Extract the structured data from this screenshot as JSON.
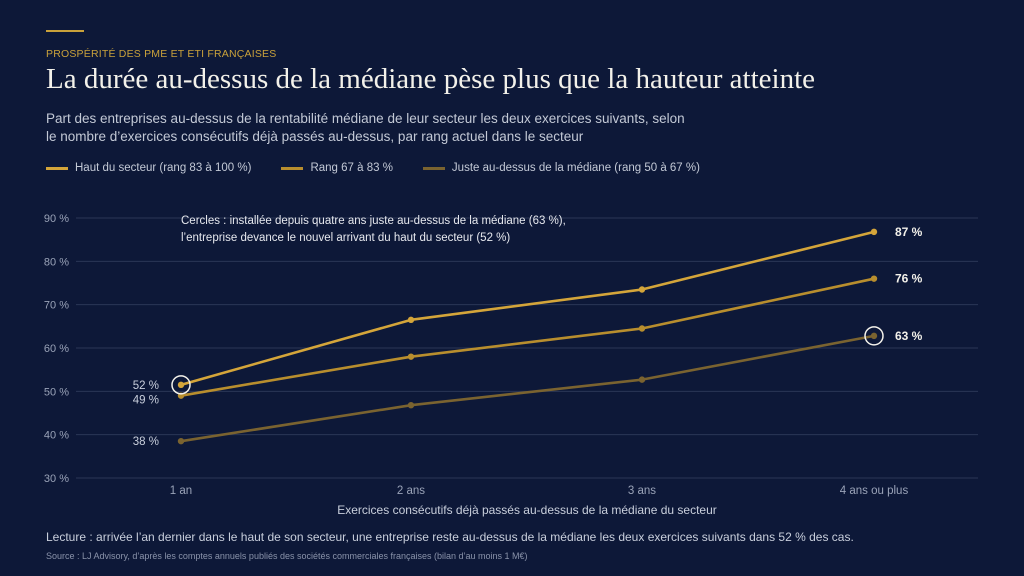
{
  "header": {
    "kicker": "PROSPÉRITÉ DES PME ET ETI FRANÇAISES",
    "title": "La durée au-dessus de la médiane pèse plus que la hauteur atteinte",
    "subtitle": "Part des entreprises au-dessus de la rentabilité médiane de leur secteur les deux exercices suivants, selon le nombre d’exercices consécutifs déjà passés au-dessus, par rang actuel dans le secteur"
  },
  "chart_data": {
    "type": "line",
    "categories": [
      "1 an",
      "2 ans",
      "3 ans",
      "4 ans ou plus"
    ],
    "xlabel": "Exercices consécutifs déjà passés au-dessus de la médiane du secteur",
    "ylabel": "",
    "ylim": [
      30,
      90
    ],
    "yticks": [
      30,
      40,
      50,
      60,
      70,
      80,
      90
    ],
    "ytick_labels": [
      "30 %",
      "40 %",
      "50 %",
      "60 %",
      "70 %",
      "80 %",
      "90 %"
    ],
    "grid": true,
    "legend_position": "top-left",
    "series": [
      {
        "name": "Haut du secteur (rang 83 à 100 %)",
        "values": [
          51.5,
          66.5,
          73.5,
          86.8
        ],
        "color": "#d4a53a",
        "start_label": "52 %",
        "end_label": "87 %"
      },
      {
        "name": "Rang 67 à 83 %",
        "values": [
          49,
          58,
          64.5,
          76
        ],
        "color": "#b88e2e",
        "start_label": "49 %",
        "end_label": "76 %"
      },
      {
        "name": "Juste au-dessus de la médiane (rang 50 à 67 %)",
        "values": [
          38.5,
          46.8,
          52.7,
          62.8
        ],
        "color": "#7a6330",
        "start_label": "38 %",
        "end_label": "63 %"
      }
    ],
    "annotation": {
      "lines": [
        "Cercles : installée depuis quatre ans juste au-dessus de la médiane (63 %),",
        "l’entreprise devance le nouvel arrivant du haut du secteur (52 %)"
      ],
      "circled": [
        {
          "series": 0,
          "point": 0
        },
        {
          "series": 2,
          "point": 3
        }
      ]
    }
  },
  "footer": {
    "note": "Lecture : arrivée l’an dernier dans le haut de son secteur, une entreprise reste au-dessus de la médiane les deux exercices suivants dans 52 % des cas.",
    "source": "Source : LJ Advisory, d’après les comptes annuels publiés des sociétés commerciales françaises (bilan d’au moins 1 M€)"
  }
}
